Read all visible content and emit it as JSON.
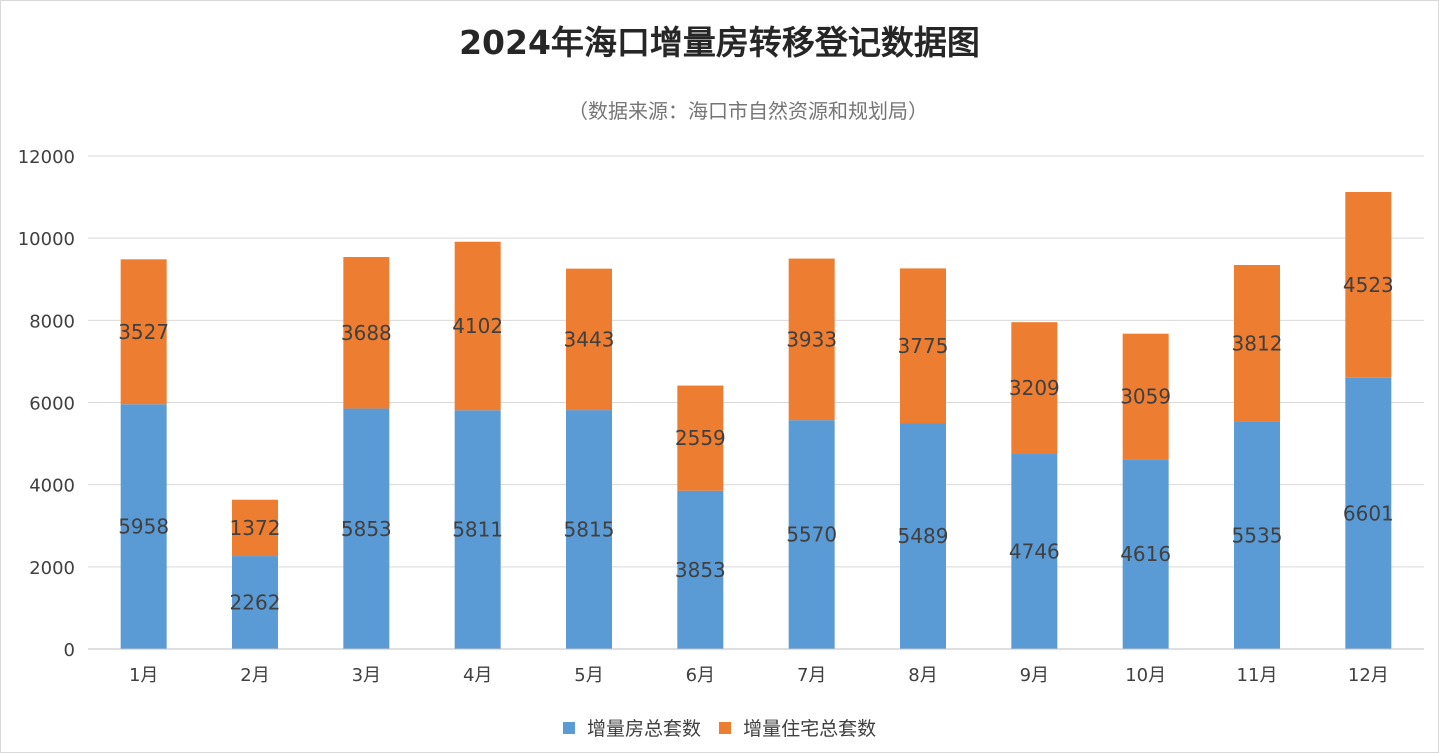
{
  "chart_data": {
    "type": "bar",
    "stacked": true,
    "title": "2024年海口增量房转移登记数据图",
    "subtitle": "（数据来源：海口市自然资源和规划局）",
    "categories": [
      "1月",
      "2月",
      "3月",
      "4月",
      "5月",
      "6月",
      "7月",
      "8月",
      "9月",
      "10月",
      "11月",
      "12月"
    ],
    "series": [
      {
        "name": "增量房总套数",
        "color": "#5b9bd5",
        "values": [
          5958,
          2262,
          5853,
          5811,
          5815,
          3853,
          5570,
          5489,
          4746,
          4616,
          5535,
          6601
        ]
      },
      {
        "name": "增量住宅总套数",
        "color": "#ed7d31",
        "values": [
          3527,
          1372,
          3688,
          4102,
          3443,
          2559,
          3933,
          3775,
          3209,
          3059,
          3812,
          4523
        ]
      }
    ],
    "ylim": [
      0,
      12000
    ],
    "yticks": [
      "0",
      "2000",
      "4000",
      "6000",
      "8000",
      "10000",
      "12000"
    ],
    "grid": true,
    "legend_position": "bottom"
  }
}
